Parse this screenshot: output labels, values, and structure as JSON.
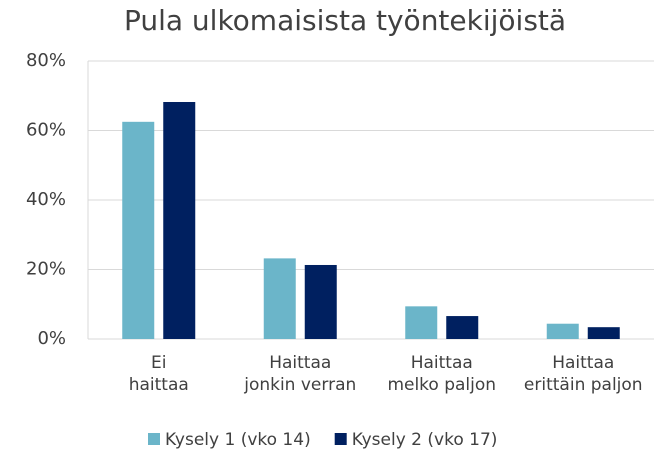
{
  "chart_data": {
    "type": "bar",
    "title": "Pula ulkomaisista työntekijöistä",
    "categories": [
      "Ei\nhaittaa",
      "Haittaa\njonkin verran",
      "Haittaa\nmelko paljon",
      "Haittaa\nerittäin paljon"
    ],
    "series": [
      {
        "name": "Kysely 1 (vko 14)",
        "color": "#6bb5c9",
        "values": [
          62.5,
          23.2,
          9.4,
          4.4
        ]
      },
      {
        "name": "Kysely 2 (vko 17)",
        "color": "#002060",
        "values": [
          68.2,
          21.3,
          6.6,
          3.4
        ]
      }
    ],
    "ylim": [
      0,
      80
    ],
    "yticks": [
      {
        "value": 0,
        "label": "0%"
      },
      {
        "value": 20,
        "label": "20%"
      },
      {
        "value": 40,
        "label": "40%"
      },
      {
        "value": 60,
        "label": "60%"
      },
      {
        "value": 80,
        "label": "80%"
      }
    ],
    "grid": true,
    "legend": "bottom"
  }
}
